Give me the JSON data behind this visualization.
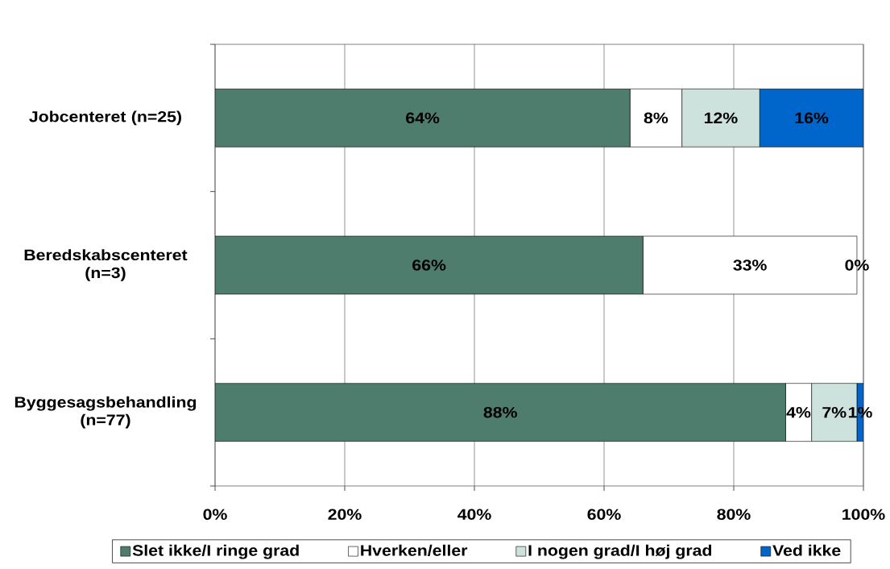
{
  "chart_data": {
    "type": "bar",
    "orientation": "horizontal",
    "stacked": true,
    "categories": [
      "Jobcenteret (n=25)",
      "Beredskabscenteret (n=3)",
      "Byggesagsbehandling (n=77)"
    ],
    "series": [
      {
        "name": "Slet ikke/I ringe grad",
        "color": "#4e7d6e",
        "values": [
          64,
          66,
          88
        ],
        "value_labels": [
          "64%",
          "66%",
          "88%"
        ]
      },
      {
        "name": "Hverken/eller",
        "color": "#ffffff",
        "values": [
          8,
          33,
          4
        ],
        "value_labels": [
          "8%",
          "33%",
          "4%"
        ]
      },
      {
        "name": "I nogen grad/I høj grad",
        "color": "#cde2dc",
        "values": [
          12,
          0,
          7
        ],
        "value_labels": [
          "12%",
          "0%",
          "7%"
        ]
      },
      {
        "name": "Ved ikke",
        "color": "#0066cc",
        "values": [
          16,
          0,
          1
        ],
        "value_labels": [
          "16%",
          null,
          "1%"
        ]
      }
    ],
    "xlim": [
      0,
      100
    ],
    "xticks": [
      {
        "value": 0,
        "label": "0%"
      },
      {
        "value": 20,
        "label": "20%"
      },
      {
        "value": 40,
        "label": "40%"
      },
      {
        "value": 60,
        "label": "60%"
      },
      {
        "value": 80,
        "label": "80%"
      },
      {
        "value": 100,
        "label": "100%"
      }
    ],
    "grid": "x",
    "legend": "bottom"
  }
}
